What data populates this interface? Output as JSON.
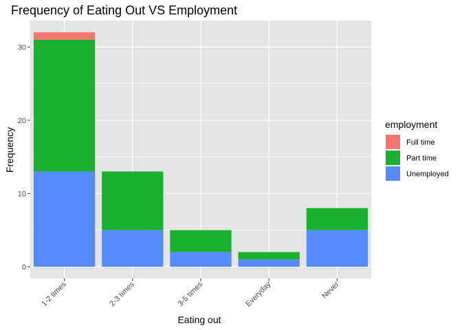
{
  "chart_data": {
    "type": "bar",
    "stacked": true,
    "title": "Frequency of Eating Out VS Employment",
    "xlabel": "Eating out",
    "ylabel": "Frequency",
    "categories": [
      "1-2 times",
      "2-3 times",
      "3-5 times",
      "Everyday",
      "Never"
    ],
    "series": [
      {
        "name": "Full time",
        "color": "#F8766D",
        "values": [
          1,
          0,
          0,
          0,
          0
        ]
      },
      {
        "name": "Part time",
        "color": "#1BB02F",
        "values": [
          18,
          8,
          3,
          1,
          3
        ]
      },
      {
        "name": "Unemployed",
        "color": "#558BFF",
        "values": [
          13,
          5,
          2,
          1,
          5
        ]
      }
    ],
    "stack_order_bottom_to_top": [
      "Unemployed",
      "Part time",
      "Full time"
    ],
    "ylim": [
      -1.6,
      33.6
    ],
    "yticks": [
      0,
      10,
      20,
      30
    ],
    "grid": true,
    "legend": {
      "title": "employment",
      "placement": "right"
    },
    "x_tick_rotation_deg": 45,
    "panel_background": "#E5E5E5",
    "grid_color": "#FFFFFF"
  }
}
